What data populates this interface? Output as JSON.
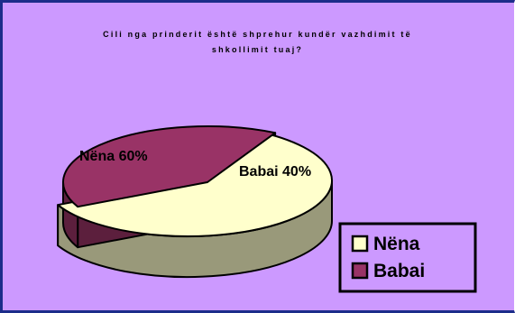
{
  "chart_data": {
    "type": "pie",
    "title": "Cili nga prinderit është shprehur kundër vazhdimit të\nshkollimit tuaj?",
    "slices": [
      {
        "label": "Nëna",
        "value": 60,
        "data_label": "Nëna 60%",
        "color": "#ffffcc",
        "side_color": "#99997a"
      },
      {
        "label": "Babai",
        "value": 40,
        "data_label": "Babai 40%",
        "color": "#993366",
        "side_color": "#5c1f3d"
      }
    ],
    "legend": {
      "position": "bottom-right",
      "entries": [
        "Nëna",
        "Babai"
      ]
    },
    "style": "3d-exploded",
    "background_color": "#cc99ff"
  }
}
